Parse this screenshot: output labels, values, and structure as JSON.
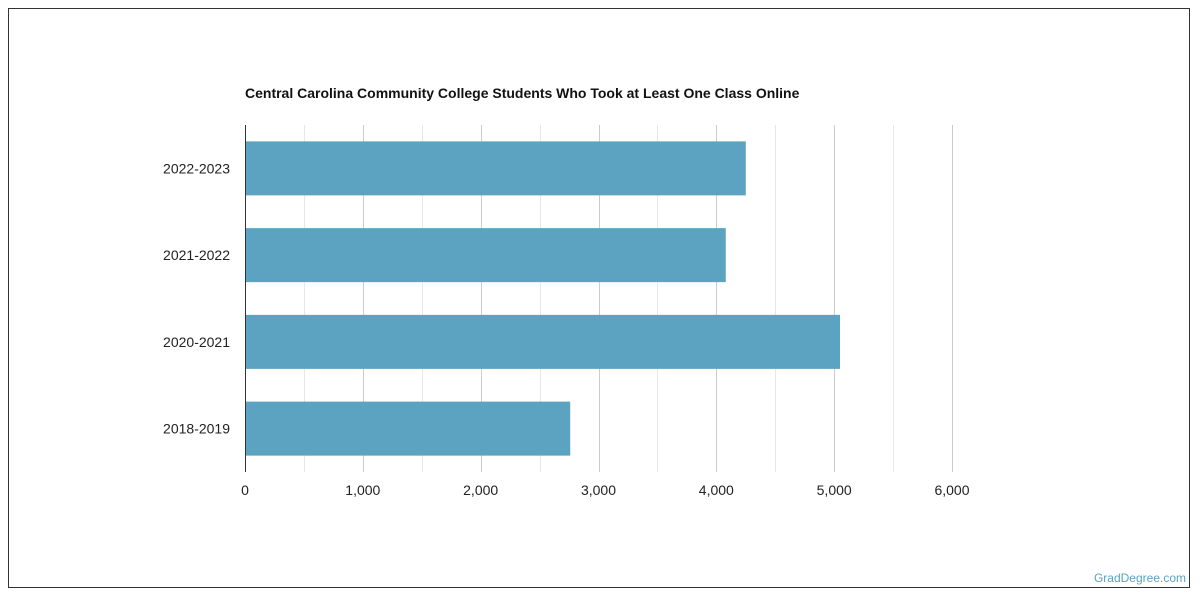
{
  "chart_data": {
    "type": "bar",
    "orientation": "horizontal",
    "title": "Central Carolina Community College Students Who Took at Least One Class Online",
    "xlabel": "",
    "ylabel": "",
    "categories": [
      "2022-2023",
      "2021-2022",
      "2020-2021",
      "2018-2019"
    ],
    "values": [
      4250,
      4080,
      5050,
      2760
    ],
    "xlim": [
      0,
      6000
    ],
    "x_ticks": [
      0,
      1000,
      2000,
      3000,
      4000,
      5000,
      6000
    ],
    "x_tick_labels": [
      "0",
      "1,000",
      "2,000",
      "3,000",
      "4,000",
      "5,000",
      "6,000"
    ],
    "grid": true,
    "bar_color": "#5ba3c0",
    "grid_color": "#d6d6d6"
  },
  "watermark": "GradDegree.com"
}
